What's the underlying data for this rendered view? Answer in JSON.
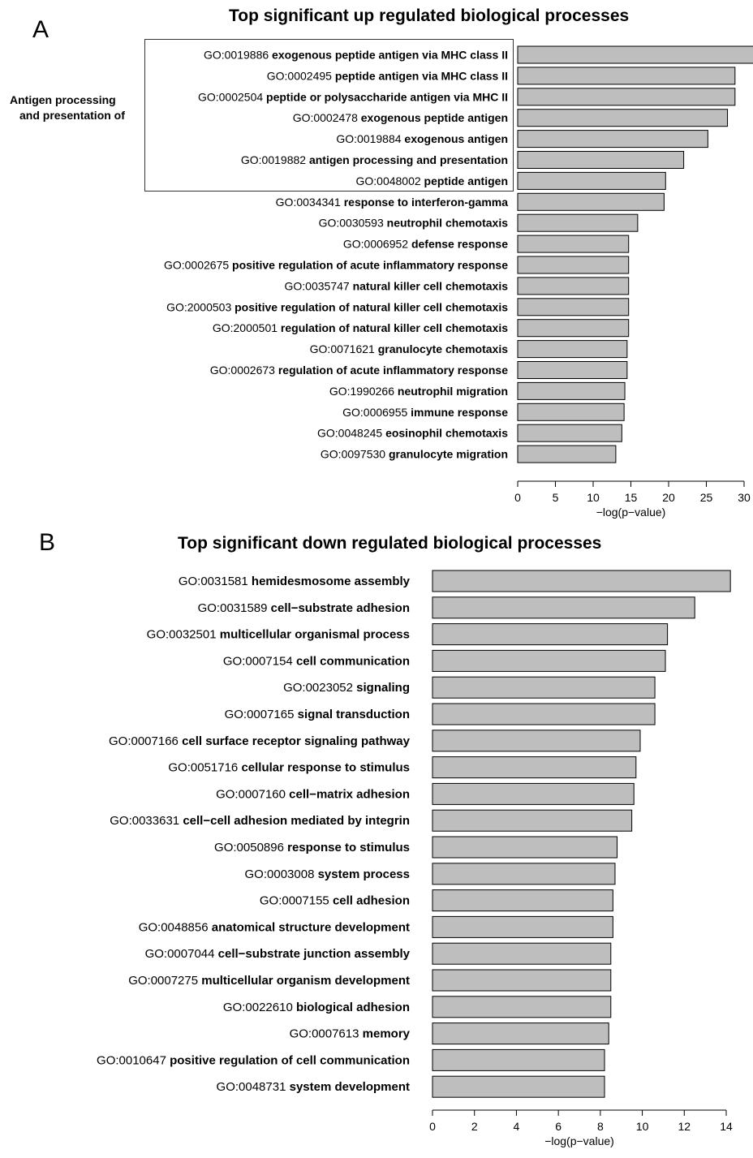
{
  "panels": {
    "a": {
      "letter": "A",
      "group_label_line1": "Antigen processing",
      "group_label_line2": "and presentation of"
    },
    "b": {
      "letter": "B"
    }
  },
  "chart_data": [
    {
      "type": "bar",
      "orientation": "horizontal",
      "title": "Top significant up regulated biological processes",
      "xlabel": "−log(p−value)",
      "ylabel": "",
      "xlim": [
        0,
        30
      ],
      "xticks": [
        0,
        5,
        10,
        15,
        20,
        25,
        30
      ],
      "bar_color": "#bebebe",
      "categories": [
        {
          "id": "GO:0019886",
          "term": "exogenous peptide antigen via MHC class II"
        },
        {
          "id": "GO:0002495",
          "term": "peptide antigen via MHC class II"
        },
        {
          "id": "GO:0002504",
          "term": "peptide or polysaccharide antigen via MHC II"
        },
        {
          "id": "GO:0002478",
          "term": "exogenous peptide antigen"
        },
        {
          "id": "GO:0019884",
          "term": "exogenous antigen"
        },
        {
          "id": "GO:0019882",
          "term": "antigen processing and presentation"
        },
        {
          "id": "GO:0048002",
          "term": " peptide antigen"
        },
        {
          "id": "GO:0034341",
          "term": "response to interferon-gamma"
        },
        {
          "id": "GO:0030593",
          "term": "neutrophil chemotaxis"
        },
        {
          "id": "GO:0006952",
          "term": "defense response"
        },
        {
          "id": "GO:0002675",
          "term": "positive regulation of acute inflammatory response"
        },
        {
          "id": "GO:0035747",
          "term": "natural killer cell chemotaxis"
        },
        {
          "id": "GO:2000503",
          "term": "positive regulation of natural killer cell chemotaxis"
        },
        {
          "id": "GO:2000501",
          "term": "regulation of natural killer cell chemotaxis"
        },
        {
          "id": "GO:0071621",
          "term": "granulocyte chemotaxis"
        },
        {
          "id": "GO:0002673",
          "term": "regulation of acute inflammatory response"
        },
        {
          "id": "GO:1990266",
          "term": "neutrophil migration"
        },
        {
          "id": "GO:0006955",
          "term": "immune response"
        },
        {
          "id": "GO:0048245",
          "term": "eosinophil chemotaxis"
        },
        {
          "id": "GO:0097530",
          "term": "granulocyte migration"
        }
      ],
      "values": [
        31.5,
        28.8,
        28.8,
        27.8,
        25.2,
        22.0,
        19.6,
        19.4,
        15.9,
        14.7,
        14.7,
        14.7,
        14.7,
        14.7,
        14.5,
        14.5,
        14.2,
        14.1,
        13.8,
        13.0
      ]
    },
    {
      "type": "bar",
      "orientation": "horizontal",
      "title": "Top significant down regulated biological processes",
      "xlabel": "−log(p−value)",
      "ylabel": "",
      "xlim": [
        0,
        14
      ],
      "xticks": [
        0,
        2,
        4,
        6,
        8,
        10,
        12,
        14
      ],
      "bar_color": "#bebebe",
      "categories": [
        {
          "id": "GO:0031581",
          "term": "hemidesmosome assembly"
        },
        {
          "id": "GO:0031589",
          "term": "cell−substrate adhesion"
        },
        {
          "id": "GO:0032501",
          "term": "multicellular organismal process"
        },
        {
          "id": "GO:0007154",
          "term": "cell communication"
        },
        {
          "id": "GO:0023052",
          "term": "signaling"
        },
        {
          "id": "GO:0007165",
          "term": "signal transduction"
        },
        {
          "id": "GO:0007166",
          "term": "cell surface receptor signaling pathway"
        },
        {
          "id": "GO:0051716",
          "term": "cellular response to stimulus"
        },
        {
          "id": "GO:0007160",
          "term": "cell−matrix adhesion "
        },
        {
          "id": "GO:0033631",
          "term": "cell−cell adhesion mediated by integrin"
        },
        {
          "id": "GO:0050896",
          "term": "response to stimulus"
        },
        {
          "id": "GO:0003008",
          "term": "system process"
        },
        {
          "id": "GO:0007155",
          "term": "cell adhesion"
        },
        {
          "id": "GO:0048856",
          "term": "anatomical structure development"
        },
        {
          "id": "GO:0007044",
          "term": "cell−substrate junction assembly"
        },
        {
          "id": "GO:0007275",
          "term": "multicellular organism development"
        },
        {
          "id": "GO:0022610",
          "term": "biological adhesion"
        },
        {
          "id": "GO:0007613",
          "term": "memory"
        },
        {
          "id": "GO:0010647",
          "term": "positive regulation of cell communication"
        },
        {
          "id": "GO:0048731",
          "term": "system development"
        }
      ],
      "values": [
        14.2,
        12.5,
        11.2,
        11.1,
        10.6,
        10.6,
        9.9,
        9.7,
        9.6,
        9.5,
        8.8,
        8.7,
        8.6,
        8.6,
        8.5,
        8.5,
        8.5,
        8.4,
        8.2,
        8.2
      ]
    }
  ]
}
